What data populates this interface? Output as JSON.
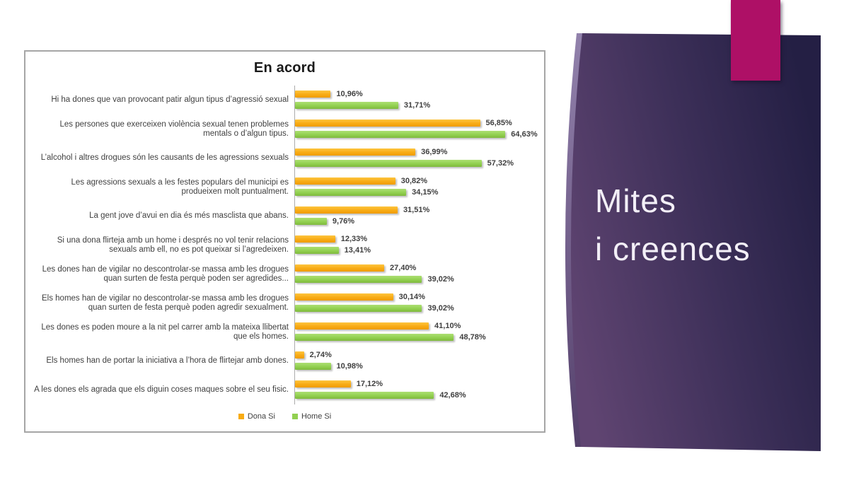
{
  "slide": {
    "title_line1": "Mites",
    "title_line2": "i creences",
    "accent_color": "#ae1066",
    "panel_gradient_start": "#5f4471",
    "panel_gradient_end": "#241f44",
    "title_text_color": "#f3eff7"
  },
  "chart_data": {
    "type": "bar",
    "orientation": "horizontal",
    "title": "En acord",
    "xlim": [
      0,
      70
    ],
    "grid": false,
    "legend_position": "bottom-center",
    "value_format": "percent, comma decimal",
    "categories": [
      "Hi ha dones que van provocant patir algun tipus d’agressió sexual",
      "Les persones que exerceixen violència sexual tenen problemes mentals o d’algun tipus.",
      "L’alcohol i altres drogues són les causants de les agressions sexuals",
      "Les agressions sexuals a les festes populars del municipi es produeixen molt puntualment.",
      "La gent jove d’avui en dia és més masclista que abans.",
      "Si una dona flirteja amb un home i després no vol tenir relacions sexuals amb ell, no es pot queixar si l’agredeixen.",
      "Les dones han de vigilar no descontrolar-se massa amb les drogues quan surten de festa perquè poden ser agredides...",
      "Els homes han de vigilar no descontrolar-se massa amb les drogues quan surten de festa perquè poden agredir sexualment.",
      "Les dones es poden moure a la nit pel carrer amb la mateixa llibertat que els homes.",
      "Els homes han de portar la iniciativa a l’hora de flirtejar amb dones.",
      "A les dones els agrada que els diguin coses maques sobre el seu fisic."
    ],
    "series": [
      {
        "name": "Dona Si",
        "color": "#f8ab14",
        "values": [
          10.96,
          56.85,
          36.99,
          30.82,
          31.51,
          12.33,
          27.4,
          30.14,
          41.1,
          2.74,
          17.12
        ],
        "labels": [
          "10,96%",
          "56,85%",
          "36,99%",
          "30,82%",
          "31,51%",
          "12,33%",
          "27,40%",
          "30,14%",
          "41,10%",
          "2,74%",
          "17,12%"
        ]
      },
      {
        "name": "Home Si",
        "color": "#92d050",
        "values": [
          31.71,
          64.63,
          57.32,
          34.15,
          9.76,
          13.41,
          39.02,
          39.02,
          48.78,
          10.98,
          42.68
        ],
        "labels": [
          "31,71%",
          "64,63%",
          "57,32%",
          "34,15%",
          "9,76%",
          "13,41%",
          "39,02%",
          "39,02%",
          "48,78%",
          "10,98%",
          "42,68%"
        ]
      }
    ]
  }
}
